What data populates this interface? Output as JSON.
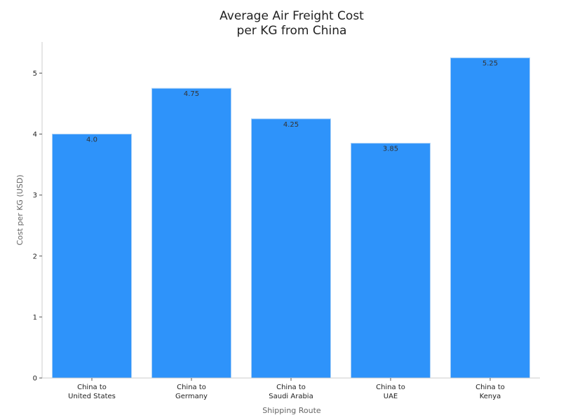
{
  "chart_data": {
    "type": "bar",
    "title_lines": [
      "Average Air Freight Cost",
      "per KG from China"
    ],
    "xlabel": "Shipping Route",
    "ylabel": "Cost per KG (USD)",
    "categories": [
      [
        "China to",
        "United States"
      ],
      [
        "China to",
        "Germany"
      ],
      [
        "China to",
        "Saudi Arabia"
      ],
      [
        "China to",
        "UAE"
      ],
      [
        "China to",
        "Kenya"
      ]
    ],
    "values": [
      4.0,
      4.75,
      4.25,
      3.85,
      5.25
    ],
    "value_labels": [
      "4.0",
      "4.75",
      "4.25",
      "3.85",
      "5.25"
    ],
    "yticks": [
      0,
      1,
      2,
      3,
      4,
      5
    ],
    "ytick_labels": [
      "0",
      "1",
      "2",
      "3",
      "4",
      "5"
    ],
    "ylim": [
      0,
      5.51
    ],
    "grid": false,
    "bar_color": "#2e93fa",
    "bar_edge_color": "#a9d0f7"
  }
}
